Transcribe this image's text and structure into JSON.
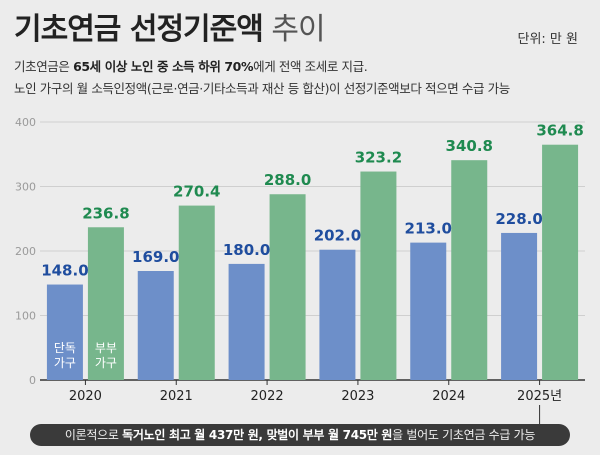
{
  "header": {
    "title_main": "기초연금 선정기준액",
    "title_light": " 추이",
    "unit": "단위: 만 원"
  },
  "description": {
    "line1_a": "기초연금은 ",
    "line1_b": "65세 이상 노인 중 소득 하위 70%",
    "line1_c": "에게 전액 조세로 지급.",
    "line2": "노인 가구의 월 소득인정액(근로·연금·기타소득과 재산 등 합산)이 선정기준액보다 적으면 수급 가능"
  },
  "footer": {
    "a": "이론적으로 ",
    "b": "독거노인 최고 월 437만 원, 맞벌이 부부 월 745만 원",
    "c": "을 벌어도 기초연금 수급 가능"
  },
  "colors": {
    "single": "#6d8fc9",
    "couple": "#77b68c",
    "single_label": "#1f4d9e",
    "couple_label": "#1f8a50",
    "background": "#ececec",
    "grid": "#cfcfcf"
  },
  "chart_data": {
    "type": "bar",
    "categories": [
      "2020",
      "2021",
      "2022",
      "2023",
      "2024",
      "2025년"
    ],
    "series": [
      {
        "name": "단독 가구",
        "values": [
          148.0,
          169.0,
          180.0,
          202.0,
          213.0,
          228.0
        ]
      },
      {
        "name": "부부 가구",
        "values": [
          236.8,
          270.4,
          288.0,
          323.2,
          340.8,
          364.8
        ]
      }
    ],
    "value_labels": {
      "single": [
        "148.0",
        "169.0",
        "180.0",
        "202.0",
        "213.0",
        "228.0"
      ],
      "couple": [
        "236.8",
        "270.4",
        "288.0",
        "323.2",
        "340.8",
        "364.8"
      ]
    },
    "in_bar_labels": {
      "single": [
        "단독",
        "가구"
      ],
      "couple": [
        "부부",
        "가구"
      ]
    },
    "yticks": [
      "0",
      "100",
      "200",
      "300",
      "400"
    ],
    "ylim": [
      0,
      400
    ],
    "grid": true,
    "legend": "inside first bars"
  }
}
